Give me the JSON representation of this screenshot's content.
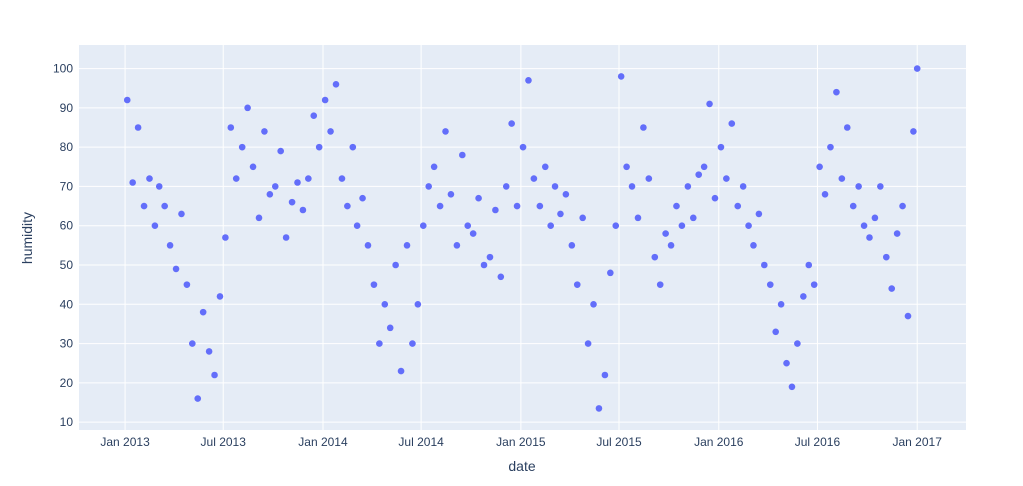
{
  "chart_data": {
    "type": "scatter",
    "x_label": "date",
    "y_label": "humidity",
    "color": "#636efa",
    "grid": true,
    "x": [
      "2013-01-05",
      "2013-01-15",
      "2013-01-25",
      "2013-02-05",
      "2013-02-15",
      "2013-02-25",
      "2013-03-05",
      "2013-03-15",
      "2013-03-25",
      "2013-04-05",
      "2013-04-15",
      "2013-04-25",
      "2013-05-05",
      "2013-05-15",
      "2013-05-25",
      "2013-06-05",
      "2013-06-15",
      "2013-06-25",
      "2013-07-05",
      "2013-07-15",
      "2013-07-25",
      "2013-08-05",
      "2013-08-15",
      "2013-08-25",
      "2013-09-05",
      "2013-09-15",
      "2013-09-25",
      "2013-10-05",
      "2013-10-15",
      "2013-10-25",
      "2013-11-05",
      "2013-11-15",
      "2013-11-25",
      "2013-12-05",
      "2013-12-15",
      "2013-12-25",
      "2014-01-05",
      "2014-01-15",
      "2014-01-25",
      "2014-02-05",
      "2014-02-15",
      "2014-02-25",
      "2014-03-05",
      "2014-03-15",
      "2014-03-25",
      "2014-04-05",
      "2014-04-15",
      "2014-04-25",
      "2014-05-05",
      "2014-05-15",
      "2014-05-25",
      "2014-06-05",
      "2014-06-15",
      "2014-06-25",
      "2014-07-05",
      "2014-07-15",
      "2014-07-25",
      "2014-08-05",
      "2014-08-15",
      "2014-08-25",
      "2014-09-05",
      "2014-09-15",
      "2014-09-25",
      "2014-10-05",
      "2014-10-15",
      "2014-10-25",
      "2014-11-05",
      "2014-11-15",
      "2014-11-25",
      "2014-12-05",
      "2014-12-15",
      "2014-12-25",
      "2015-01-05",
      "2015-01-15",
      "2015-01-25",
      "2015-02-05",
      "2015-02-15",
      "2015-02-25",
      "2015-03-05",
      "2015-03-15",
      "2015-03-25",
      "2015-04-05",
      "2015-04-15",
      "2015-04-25",
      "2015-05-05",
      "2015-05-15",
      "2015-05-25",
      "2015-06-05",
      "2015-06-15",
      "2015-06-25",
      "2015-07-05",
      "2015-07-15",
      "2015-07-25",
      "2015-08-05",
      "2015-08-15",
      "2015-08-25",
      "2015-09-05",
      "2015-09-15",
      "2015-09-25",
      "2015-10-05",
      "2015-10-15",
      "2015-10-25",
      "2015-11-05",
      "2015-11-15",
      "2015-11-25",
      "2015-12-05",
      "2015-12-15",
      "2015-12-25",
      "2016-01-05",
      "2016-01-15",
      "2016-01-25",
      "2016-02-05",
      "2016-02-15",
      "2016-02-25",
      "2016-03-05",
      "2016-03-15",
      "2016-03-25",
      "2016-04-05",
      "2016-04-15",
      "2016-04-25",
      "2016-05-05",
      "2016-05-15",
      "2016-05-25",
      "2016-06-05",
      "2016-06-15",
      "2016-06-25",
      "2016-07-05",
      "2016-07-15",
      "2016-07-25",
      "2016-08-05",
      "2016-08-15",
      "2016-08-25",
      "2016-09-05",
      "2016-09-15",
      "2016-09-25",
      "2016-10-05",
      "2016-10-15",
      "2016-10-25",
      "2016-11-05",
      "2016-11-15",
      "2016-11-25",
      "2016-12-05",
      "2016-12-15",
      "2016-12-25",
      "2017-01-01"
    ],
    "values": [
      92,
      71,
      85,
      65,
      72,
      60,
      70,
      65,
      55,
      49,
      63,
      45,
      30,
      16,
      38,
      28,
      22,
      42,
      57,
      85,
      72,
      80,
      90,
      75,
      62,
      84,
      68,
      70,
      79,
      57,
      66,
      71,
      64,
      72,
      88,
      80,
      92,
      84,
      96,
      72,
      65,
      80,
      60,
      67,
      55,
      45,
      30,
      40,
      34,
      50,
      23,
      55,
      30,
      40,
      60,
      70,
      75,
      65,
      84,
      68,
      55,
      78,
      60,
      58,
      67,
      50,
      52,
      64,
      47,
      70,
      86,
      65,
      80,
      97,
      72,
      65,
      75,
      60,
      70,
      63,
      68,
      55,
      45,
      62,
      30,
      40,
      13.5,
      22,
      48,
      60,
      98,
      75,
      70,
      62,
      85,
      72,
      52,
      45,
      58,
      55,
      65,
      60,
      70,
      62,
      73,
      75,
      91,
      67,
      80,
      72,
      86,
      65,
      70,
      60,
      55,
      63,
      50,
      45,
      33,
      40,
      25,
      19,
      30,
      42,
      50,
      45,
      75,
      68,
      80,
      94,
      72,
      85,
      65,
      70,
      60,
      57,
      62,
      70,
      52,
      44,
      58,
      65,
      37,
      84,
      100
    ],
    "xlim": [
      "2012-10-08",
      "2017-04-01"
    ],
    "xticks": [
      {
        "value": "2013-01-01",
        "label": "Jan 2013"
      },
      {
        "value": "2013-07-01",
        "label": "Jul 2013"
      },
      {
        "value": "2014-01-01",
        "label": "Jan 2014"
      },
      {
        "value": "2014-07-01",
        "label": "Jul 2014"
      },
      {
        "value": "2015-01-01",
        "label": "Jan 2015"
      },
      {
        "value": "2015-07-01",
        "label": "Jul 2015"
      },
      {
        "value": "2016-01-01",
        "label": "Jan 2016"
      },
      {
        "value": "2016-07-01",
        "label": "Jul 2016"
      },
      {
        "value": "2017-01-01",
        "label": "Jan 2017"
      }
    ],
    "ylim": [
      8,
      106
    ],
    "yticks": [
      10,
      20,
      30,
      40,
      50,
      60,
      70,
      80,
      90,
      100
    ]
  }
}
